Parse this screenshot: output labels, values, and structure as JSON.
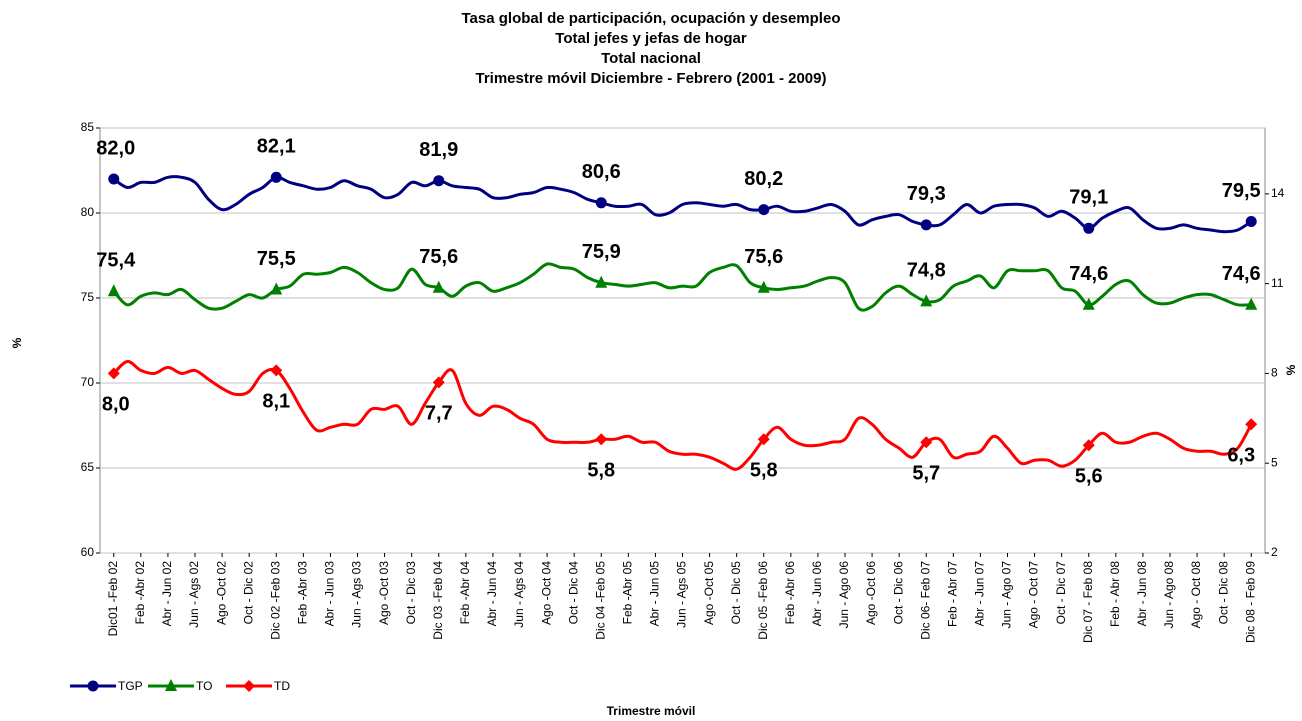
{
  "chart_data": {
    "type": "line",
    "title": [
      "Tasa global de participación, ocupación y desempleo",
      "Total jefes y jefas de hogar",
      "Total nacional",
      "Trimestre móvil Diciembre - Febrero (2001 - 2009)"
    ],
    "xlabel": "Trimestre móvil",
    "ylabel": "%",
    "y2label": "%",
    "categories": [
      "Dic01 -Feb 02",
      null,
      "Feb -Abr 02",
      null,
      "Abr - Jun 02",
      null,
      "Jun - Ags 02",
      null,
      "Ago -Oct 02",
      null,
      "Oct - Dic 02",
      null,
      "Dic 02 -Feb 03",
      null,
      "Feb -Abr 03",
      null,
      "Abr - Jun 03",
      null,
      "Jun - Ags 03",
      null,
      "Ago -Oct 03",
      null,
      "Oct - Dic 03",
      null,
      "Dic 03 -Feb 04",
      null,
      "Feb -Abr 04",
      null,
      "Abr - Jun 04",
      null,
      "Jun - Ags 04",
      null,
      "Ago -Oct 04",
      null,
      "Oct - Dic 04",
      null,
      "Dic 04 -Feb 05",
      null,
      "Feb -Abr 05",
      null,
      "Abr - Jun 05",
      null,
      "Jun - Ags 05",
      null,
      "Ago -Oct 05",
      null,
      "Oct - Dic 05",
      null,
      "Dic 05 -Feb 06",
      null,
      "Feb -Abr 06",
      null,
      "Abr - Jun 06",
      null,
      "Jun - Ago 06",
      null,
      "Ago -Oct 06",
      null,
      "Oct - Dic 06",
      null,
      "Dic  06- Feb 07",
      null,
      "Feb - Abr 07",
      null,
      "Abr - Jun 07",
      null,
      "Jun - Ago 07",
      null,
      "Ago - Oct 07",
      null,
      "Oct - Dic 07",
      null,
      "Dic 07 - Feb 08",
      null,
      "Feb - Abr 08",
      null,
      "Abr - Jun 08",
      null,
      "Jun - Ago 08",
      null,
      "Ago - Oct 08",
      null,
      "Oct - Dic 08",
      null,
      "Dic 08 - Feb 09"
    ],
    "ylim": [
      60,
      85
    ],
    "yticks": [
      60,
      65,
      70,
      75,
      80,
      85
    ],
    "y2lim": [
      2,
      16.2
    ],
    "y2ticks": [
      2,
      5,
      8,
      11,
      14
    ],
    "grid": true,
    "legend": "bottom-left",
    "series": [
      {
        "name": "TGP",
        "color": "#000080",
        "marker": "circle",
        "values": [
          82.0,
          81.5,
          81.8,
          81.8,
          82.1,
          82.1,
          81.8,
          80.8,
          80.2,
          80.5,
          81.1,
          81.5,
          82.1,
          81.8,
          81.6,
          81.4,
          81.5,
          81.9,
          81.6,
          81.4,
          80.9,
          81.1,
          81.8,
          81.6,
          81.9,
          81.6,
          81.5,
          81.4,
          80.9,
          80.9,
          81.1,
          81.2,
          81.5,
          81.4,
          81.2,
          80.8,
          80.6,
          80.4,
          80.4,
          80.5,
          79.9,
          80.0,
          80.5,
          80.6,
          80.5,
          80.4,
          80.5,
          80.2,
          80.2,
          80.4,
          80.1,
          80.1,
          80.3,
          80.5,
          80.1,
          79.3,
          79.6,
          79.8,
          79.9,
          79.5,
          79.3,
          79.3,
          79.9,
          80.5,
          80.0,
          80.4,
          80.5,
          80.5,
          80.3,
          79.8,
          80.1,
          79.7,
          79.1,
          79.7,
          80.1,
          80.3,
          79.6,
          79.1,
          79.1,
          79.3,
          79.1,
          79.0,
          78.9,
          79.0,
          79.5
        ],
        "value_labels": [
          "82,0",
          null,
          null,
          null,
          null,
          null,
          null,
          null,
          null,
          null,
          null,
          null,
          "82,1",
          null,
          null,
          null,
          null,
          null,
          null,
          null,
          null,
          null,
          null,
          null,
          "81,9",
          null,
          null,
          null,
          null,
          null,
          null,
          null,
          null,
          null,
          null,
          null,
          "80,6",
          null,
          null,
          null,
          null,
          null,
          null,
          null,
          null,
          null,
          null,
          null,
          "80,2",
          null,
          null,
          null,
          null,
          null,
          null,
          null,
          null,
          null,
          null,
          null,
          "79,3",
          null,
          null,
          null,
          null,
          null,
          null,
          null,
          null,
          null,
          null,
          null,
          "79,1",
          null,
          null,
          null,
          null,
          null,
          null,
          null,
          null,
          null,
          null,
          null,
          "79,5"
        ]
      },
      {
        "name": "TO",
        "color": "#008000",
        "marker": "triangle",
        "values": [
          75.4,
          74.6,
          75.1,
          75.3,
          75.2,
          75.5,
          74.9,
          74.4,
          74.4,
          74.8,
          75.2,
          75.0,
          75.5,
          75.7,
          76.4,
          76.4,
          76.5,
          76.8,
          76.5,
          75.9,
          75.5,
          75.6,
          76.7,
          75.8,
          75.6,
          75.1,
          75.7,
          75.9,
          75.4,
          75.6,
          75.9,
          76.4,
          77.0,
          76.8,
          76.7,
          76.2,
          75.9,
          75.8,
          75.7,
          75.8,
          75.9,
          75.6,
          75.7,
          75.7,
          76.5,
          76.8,
          76.9,
          75.9,
          75.6,
          75.5,
          75.6,
          75.7,
          76.0,
          76.2,
          75.9,
          74.4,
          74.5,
          75.3,
          75.7,
          75.2,
          74.8,
          74.9,
          75.7,
          76.0,
          76.3,
          75.6,
          76.6,
          76.6,
          76.6,
          76.6,
          75.6,
          75.4,
          74.6,
          75.1,
          75.8,
          76.0,
          75.2,
          74.7,
          74.7,
          75.0,
          75.2,
          75.2,
          74.9,
          74.6,
          74.6
        ],
        "value_labels": [
          "75,4",
          null,
          null,
          null,
          null,
          null,
          null,
          null,
          null,
          null,
          null,
          null,
          "75,5",
          null,
          null,
          null,
          null,
          null,
          null,
          null,
          null,
          null,
          null,
          null,
          "75,6",
          null,
          null,
          null,
          null,
          null,
          null,
          null,
          null,
          null,
          null,
          null,
          "75,9",
          null,
          null,
          null,
          null,
          null,
          null,
          null,
          null,
          null,
          null,
          null,
          "75,6",
          null,
          null,
          null,
          null,
          null,
          null,
          null,
          null,
          null,
          null,
          null,
          "74,8",
          null,
          null,
          null,
          null,
          null,
          null,
          null,
          null,
          null,
          null,
          null,
          "74,6",
          null,
          null,
          null,
          null,
          null,
          null,
          null,
          null,
          null,
          null,
          null,
          "74,6"
        ]
      },
      {
        "name": "TD",
        "color": "#ff0000",
        "marker": "diamond",
        "axis": "y2",
        "values": [
          8.0,
          8.4,
          8.1,
          8.0,
          8.2,
          8.0,
          8.1,
          7.8,
          7.5,
          7.3,
          7.4,
          8.0,
          8.1,
          7.5,
          6.7,
          6.1,
          6.2,
          6.3,
          6.3,
          6.8,
          6.8,
          6.9,
          6.3,
          7.0,
          7.7,
          8.1,
          7.0,
          6.6,
          6.9,
          6.8,
          6.5,
          6.3,
          5.8,
          5.7,
          5.7,
          5.7,
          5.8,
          5.8,
          5.9,
          5.7,
          5.7,
          5.4,
          5.3,
          5.3,
          5.2,
          5.0,
          4.8,
          5.2,
          5.8,
          6.2,
          5.8,
          5.6,
          5.6,
          5.7,
          5.8,
          6.5,
          6.3,
          5.8,
          5.5,
          5.2,
          5.7,
          5.8,
          5.2,
          5.3,
          5.4,
          5.9,
          5.5,
          5.0,
          5.1,
          5.1,
          4.9,
          5.1,
          5.6,
          6.0,
          5.7,
          5.7,
          5.9,
          6.0,
          5.8,
          5.5,
          5.4,
          5.4,
          5.3,
          5.5,
          6.3
        ],
        "value_labels": [
          "8,0",
          null,
          null,
          null,
          null,
          null,
          null,
          null,
          null,
          null,
          null,
          null,
          "8,1",
          null,
          null,
          null,
          null,
          null,
          null,
          null,
          null,
          null,
          null,
          null,
          "7,7",
          null,
          null,
          null,
          null,
          null,
          null,
          null,
          null,
          null,
          null,
          null,
          "5,8",
          null,
          null,
          null,
          null,
          null,
          null,
          null,
          null,
          null,
          null,
          null,
          "5,8",
          null,
          null,
          null,
          null,
          null,
          null,
          null,
          null,
          null,
          null,
          null,
          "5,7",
          null,
          null,
          null,
          null,
          null,
          null,
          null,
          null,
          null,
          null,
          null,
          "5,6",
          null,
          null,
          null,
          null,
          null,
          null,
          null,
          null,
          null,
          null,
          null,
          "6,3"
        ]
      }
    ]
  }
}
